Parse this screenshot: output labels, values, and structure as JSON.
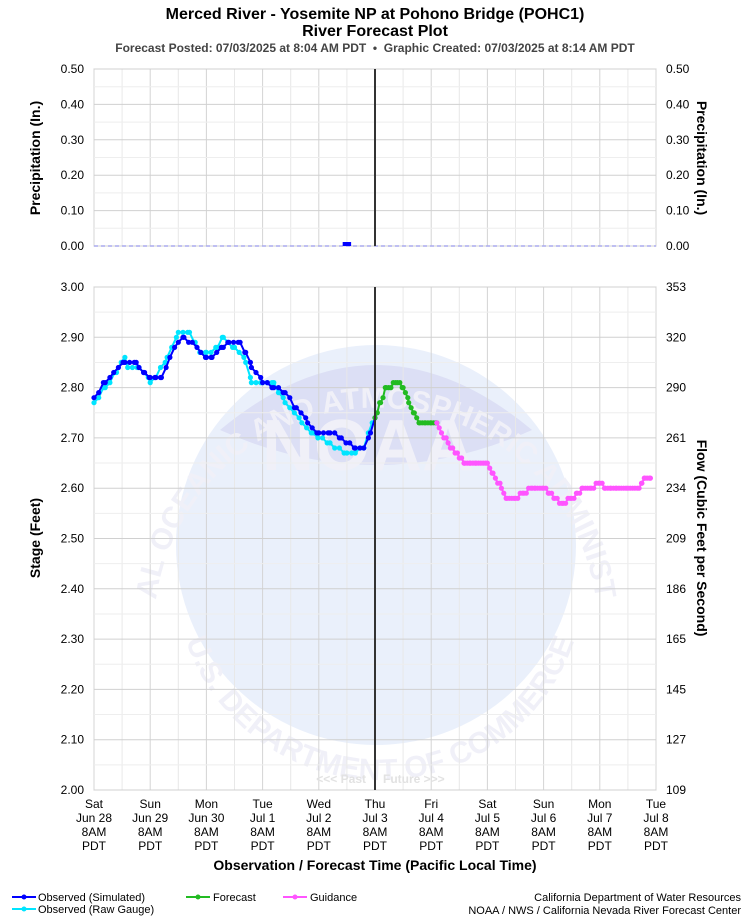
{
  "header": {
    "title": "Merced River - Yosemite NP at Pohono Bridge (POHC1)",
    "subtitle": "River Forecast Plot",
    "posted": "Forecast Posted: 07/03/2025 at 8:04 AM PDT  •  Graphic Created: 07/03/2025 at 8:14 AM PDT"
  },
  "watermark": {
    "ring_top": "NATIONAL OCEANIC AND ATMOSPHERIC ADMINISTRATION",
    "ring_bottom": "U.S. DEPARTMENT OF COMMERCE",
    "logo": "NOAA"
  },
  "past_label": "<<< Past",
  "future_label": "Future >>>",
  "footer": {
    "agency_line1": "California Department of Water Resources",
    "agency_line2": "NOAA / NWS / California Nevada River Forecast Center"
  },
  "legend": [
    {
      "label": "Observed (Simulated)",
      "color": "#0000ff"
    },
    {
      "label": "Observed (Raw Gauge)",
      "color": "#00e5ff"
    },
    {
      "label": "Forecast",
      "color": "#22bb22"
    },
    {
      "label": "Guidance",
      "color": "#ff55ff"
    }
  ],
  "chart_data": [
    {
      "type": "bar",
      "panel": "precipitation",
      "ylabel_left": "Precipitation (In.)",
      "ylabel_right": "Precipitation (In.)",
      "ylim": [
        0,
        0.5
      ],
      "yticks": [
        "0.00",
        "0.10",
        "0.20",
        "0.30",
        "0.40",
        "0.50"
      ],
      "x_days_range": [
        0,
        10
      ],
      "bars": [
        {
          "day": 4.5,
          "value": 0.005,
          "width_days": 0.15
        }
      ]
    },
    {
      "type": "line",
      "panel": "stage",
      "xlabel": "Observation / Forecast Time (Pacific Local Time)",
      "ylabel_left": "Stage (Feet)",
      "ylabel_right": "Flow (Cubic Feet per Second)",
      "ylim": [
        2.0,
        3.0
      ],
      "yticks_left": [
        "2.00",
        "2.10",
        "2.20",
        "2.30",
        "2.40",
        "2.50",
        "2.60",
        "2.70",
        "2.80",
        "2.90",
        "3.00"
      ],
      "yticks_right": [
        "109",
        "127",
        "145",
        "165",
        "186",
        "209",
        "234",
        "261",
        "290",
        "320",
        "353"
      ],
      "x_days_range": [
        0,
        10
      ],
      "now_day": 5,
      "x_ticks": [
        {
          "day": 0,
          "lines": [
            "Sat",
            "Jun 28",
            "8AM",
            "PDT"
          ]
        },
        {
          "day": 1,
          "lines": [
            "Sun",
            "Jun 29",
            "8AM",
            "PDT"
          ]
        },
        {
          "day": 2,
          "lines": [
            "Mon",
            "Jun 30",
            "8AM",
            "PDT"
          ]
        },
        {
          "day": 3,
          "lines": [
            "Tue",
            "Jul 1",
            "8AM",
            "PDT"
          ]
        },
        {
          "day": 4,
          "lines": [
            "Wed",
            "Jul 2",
            "8AM",
            "PDT"
          ]
        },
        {
          "day": 5,
          "lines": [
            "Thu",
            "Jul 3",
            "8AM",
            "PDT"
          ]
        },
        {
          "day": 6,
          "lines": [
            "Fri",
            "Jul 4",
            "8AM",
            "PDT"
          ]
        },
        {
          "day": 7,
          "lines": [
            "Sat",
            "Jul 5",
            "8AM",
            "PDT"
          ]
        },
        {
          "day": 8,
          "lines": [
            "Sun",
            "Jul 6",
            "8AM",
            "PDT"
          ]
        },
        {
          "day": 9,
          "lines": [
            "Mon",
            "Jul 7",
            "8AM",
            "PDT"
          ]
        },
        {
          "day": 10,
          "lines": [
            "Tue",
            "Jul 8",
            "8AM",
            "PDT"
          ]
        }
      ],
      "series": [
        {
          "name": "Observed (Raw Gauge)",
          "color": "#00e5ff",
          "step_hours": 2,
          "x": [
            0,
            0.2,
            0.4,
            0.55,
            0.6,
            0.8,
            1.0,
            1.1,
            1.3,
            1.5,
            1.7,
            1.8,
            1.9,
            2.0,
            2.2,
            2.3,
            2.5,
            2.7,
            2.8,
            3.0,
            3.2,
            3.4,
            3.7,
            3.9,
            4.2,
            4.5,
            4.65,
            4.8,
            4.95
          ],
          "y": [
            2.77,
            2.8,
            2.83,
            2.86,
            2.84,
            2.84,
            2.81,
            2.82,
            2.86,
            2.91,
            2.91,
            2.89,
            2.87,
            2.87,
            2.88,
            2.9,
            2.88,
            2.85,
            2.81,
            2.81,
            2.81,
            2.77,
            2.73,
            2.71,
            2.69,
            2.67,
            2.67,
            2.68,
            2.73
          ]
        },
        {
          "name": "Observed (Simulated)",
          "color": "#0000ff",
          "step_hours": 2,
          "x": [
            0,
            0.2,
            0.35,
            0.55,
            0.75,
            0.8,
            0.9,
            1.0,
            1.1,
            1.2,
            1.35,
            1.5,
            1.6,
            1.75,
            1.9,
            2.0,
            2.1,
            2.3,
            2.4,
            2.6,
            2.7,
            2.8,
            3.0,
            3.2,
            3.4,
            3.6,
            3.8,
            4.0,
            4.2,
            4.4,
            4.55,
            4.65,
            4.8,
            4.92,
            5.0
          ],
          "y": [
            2.78,
            2.81,
            2.83,
            2.85,
            2.85,
            2.84,
            2.83,
            2.82,
            2.82,
            2.82,
            2.86,
            2.89,
            2.9,
            2.89,
            2.87,
            2.86,
            2.86,
            2.88,
            2.89,
            2.89,
            2.87,
            2.84,
            2.81,
            2.8,
            2.79,
            2.76,
            2.73,
            2.71,
            2.71,
            2.7,
            2.69,
            2.68,
            2.68,
            2.71,
            2.74
          ]
        },
        {
          "name": "Forecast",
          "color": "#22bb22",
          "step_hours": 1,
          "x": [
            5.0,
            5.1,
            5.2,
            5.4,
            5.5,
            5.6,
            5.7,
            5.8,
            5.9,
            6.0,
            6.1
          ],
          "y": [
            2.74,
            2.77,
            2.8,
            2.81,
            2.8,
            2.77,
            2.75,
            2.73,
            2.73,
            2.73,
            2.73
          ]
        },
        {
          "name": "Guidance",
          "color": "#ff55ff",
          "step_hours": 1,
          "x": [
            6.1,
            6.3,
            6.5,
            6.6,
            6.7,
            6.8,
            7.0,
            7.1,
            7.25,
            7.35,
            7.5,
            7.65,
            7.8,
            7.85,
            8.0,
            8.1,
            8.2,
            8.35,
            8.5,
            8.6,
            8.7,
            8.85,
            9.0,
            9.1,
            9.2,
            9.3,
            9.5,
            9.7,
            9.75,
            9.8,
            9.9
          ],
          "y": [
            2.73,
            2.69,
            2.66,
            2.65,
            2.65,
            2.65,
            2.65,
            2.63,
            2.6,
            2.58,
            2.58,
            2.59,
            2.6,
            2.6,
            2.6,
            2.59,
            2.58,
            2.57,
            2.58,
            2.59,
            2.6,
            2.6,
            2.61,
            2.6,
            2.6,
            2.6,
            2.6,
            2.6,
            2.61,
            2.62,
            2.62
          ]
        }
      ]
    }
  ]
}
